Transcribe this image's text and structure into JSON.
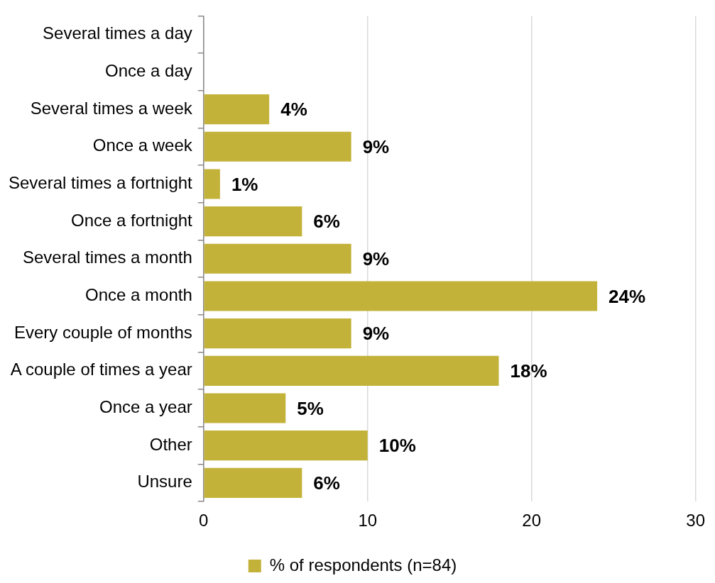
{
  "chart_data": {
    "type": "bar",
    "orientation": "horizontal",
    "categories": [
      "Several times a day",
      "Once a day",
      "Several times a week",
      "Once a week",
      "Several times a fortnight",
      "Once a fortnight",
      "Several times a month",
      "Once a month",
      "Every couple of months",
      "A couple of times a year",
      "Once a year",
      "Other",
      "Unsure"
    ],
    "series": [
      {
        "name": "% of respondents (n=84)",
        "color": "#c3b23a",
        "values": [
          0,
          0,
          4,
          9,
          1,
          6,
          9,
          24,
          9,
          18,
          5,
          10,
          6
        ],
        "value_labels": [
          null,
          null,
          "4%",
          "9%",
          "1%",
          "6%",
          "9%",
          "24%",
          "9%",
          "18%",
          "5%",
          "10%",
          "6%"
        ]
      }
    ],
    "xlim": [
      0,
      30
    ],
    "xticks": [
      0,
      10,
      20,
      30
    ],
    "grid": "x",
    "legend": "bottom"
  }
}
